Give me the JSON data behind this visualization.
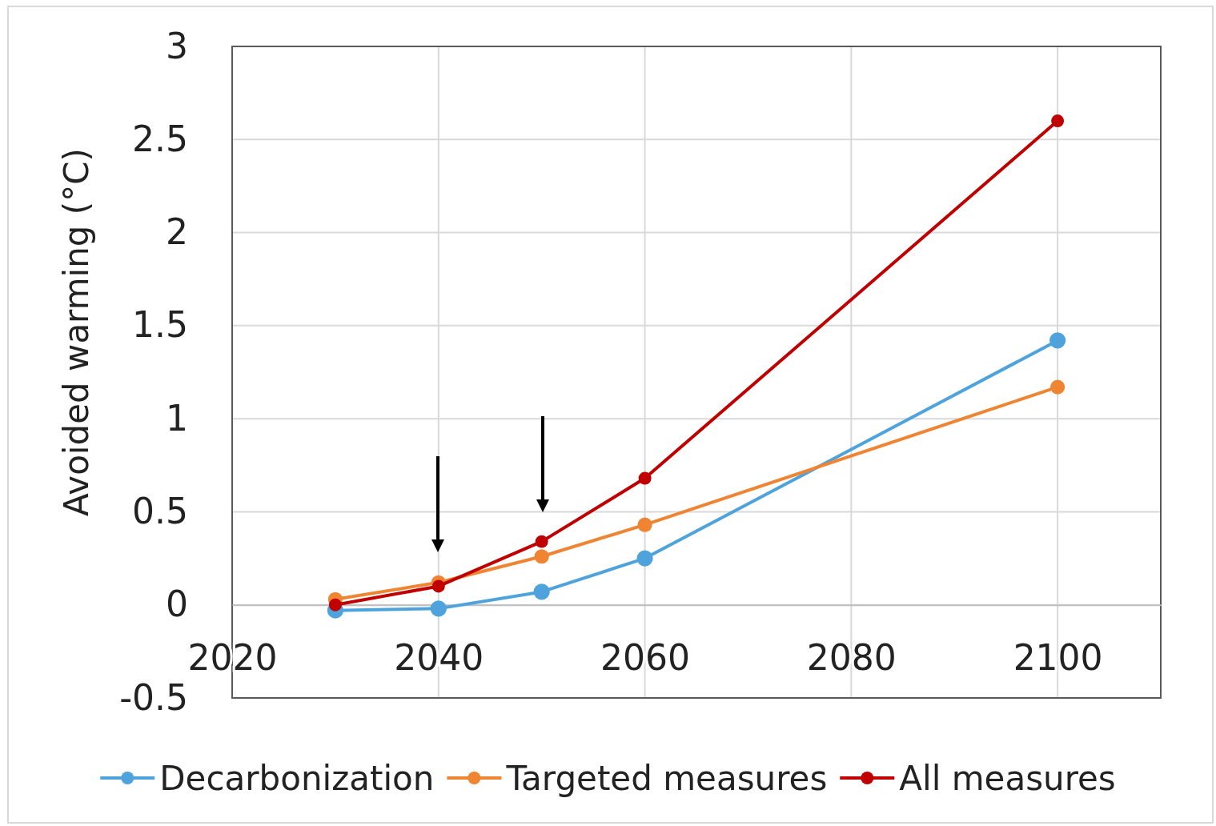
{
  "chart_data": {
    "type": "line",
    "ylabel": "Avoided warming (°C)",
    "x": [
      2030,
      2040,
      2050,
      2060,
      2100
    ],
    "series": [
      {
        "name": "Decarbonization",
        "color": "#4ea3dc",
        "values": [
          -0.03,
          -0.02,
          0.07,
          0.25,
          1.42
        ]
      },
      {
        "name": "Targeted measures",
        "color": "#ef8533",
        "values": [
          0.03,
          0.12,
          0.26,
          0.43,
          1.17
        ]
      },
      {
        "name": "All measures",
        "color": "#c00000",
        "values": [
          0.0,
          0.1,
          0.34,
          0.68,
          2.6
        ]
      }
    ],
    "xlim": [
      2020,
      2110
    ],
    "xticks": [
      2020,
      2040,
      2060,
      2080,
      2100
    ],
    "ylim": [
      -0.5,
      3
    ],
    "yticks": [
      {
        "value": -0.5,
        "label": "-0.5"
      },
      0,
      0.5,
      1,
      1.5,
      2,
      2.5,
      3
    ],
    "grid": true,
    "legend": "bottom",
    "marker": "circle",
    "line_style": "solid"
  }
}
